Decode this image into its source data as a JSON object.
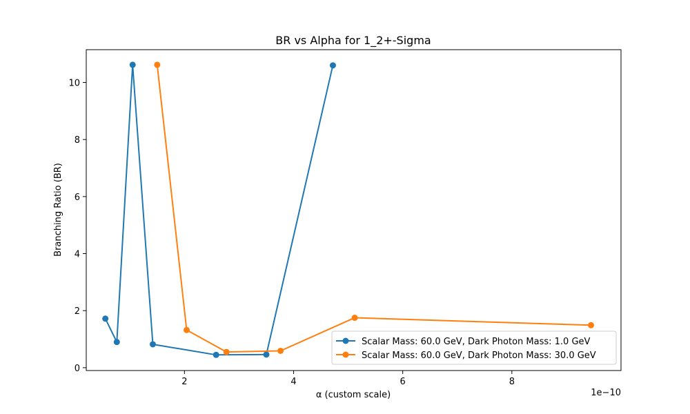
{
  "chart_data": {
    "type": "line",
    "title": "BR vs Alpha for 1_2+-Sigma",
    "xlabel": "α (custom scale)",
    "ylabel": "Branching Ratio (BR)",
    "x_scale_label": "1e−10",
    "xlim": [
      0.2,
      10.0
    ],
    "ylim": [
      -0.1,
      11.15
    ],
    "xticks": [
      2,
      4,
      6,
      8
    ],
    "xtick_labels": [
      "2",
      "4",
      "6",
      "8"
    ],
    "yticks": [
      0,
      2,
      4,
      6,
      8,
      10
    ],
    "ytick_labels": [
      "0",
      "2",
      "4",
      "6",
      "8",
      "10"
    ],
    "grid": false,
    "legend_position": "lower-right",
    "series": [
      {
        "name": "Scalar Mass: 60.0 GeV, Dark Photon Mass: 1.0 GeV",
        "color": "#1f77b4",
        "x": [
          0.55,
          0.76,
          1.05,
          1.42,
          2.58,
          3.5,
          4.72
        ],
        "y": [
          1.72,
          0.9,
          10.62,
          0.82,
          0.45,
          0.46,
          10.6
        ]
      },
      {
        "name": "Scalar Mass: 60.0 GeV, Dark Photon Mass: 30.0 GeV",
        "color": "#ff7f0e",
        "x": [
          1.5,
          2.04,
          2.77,
          3.76,
          5.12,
          9.45
        ],
        "y": [
          10.62,
          1.32,
          0.55,
          0.59,
          1.75,
          1.49
        ]
      }
    ]
  }
}
